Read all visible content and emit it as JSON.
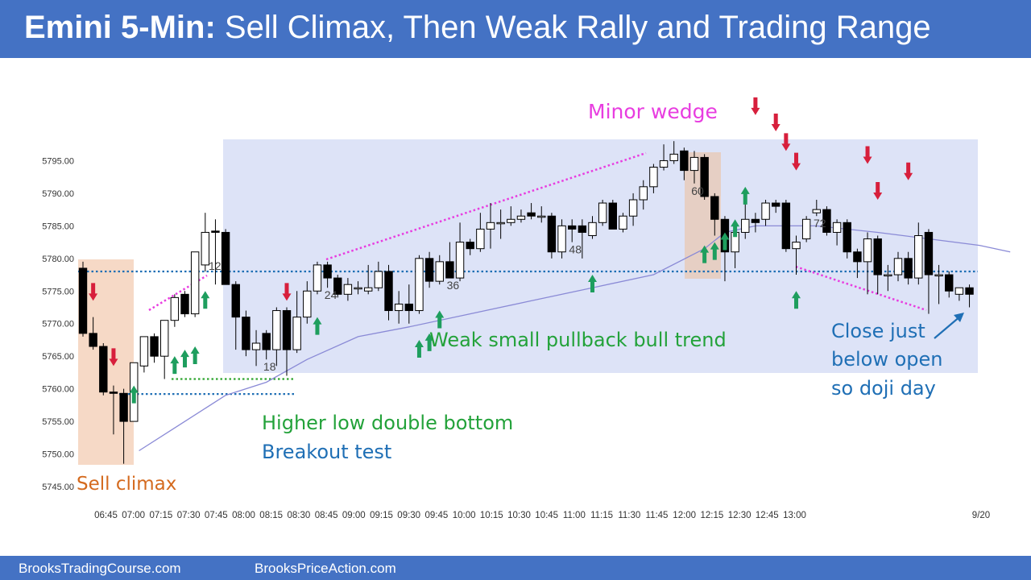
{
  "header": {
    "title_bold": "Emini 5-Min:",
    "title_rest": "Sell Climax, Then Weak Rally and Trading Range"
  },
  "footer": {
    "left": "BrooksTradingCourse.com",
    "right": "BrooksPriceAction.com"
  },
  "annotations": {
    "minor_wedge": "Minor wedge",
    "sell_climax": "Sell climax",
    "weak_trend": "Weak small pullback bull trend",
    "hl_line1": "Higher low double bottom",
    "hl_line2": "Breakout test",
    "close_line1": "Close just",
    "close_line2": "below open",
    "close_line3": "so doji day"
  },
  "colors": {
    "bull": "#ffffff",
    "bear": "#000000",
    "ema": "#8a8ad6",
    "range_box": "#dde3f7",
    "climax_box": "#f6d9c6",
    "up_arrow": "#1e9e5e",
    "down_arrow": "#d71f3c",
    "wedge": "#e83de0",
    "dotted_blue": "#1f6fb5",
    "dotted_green": "#2fa52f",
    "header_bg": "#4472c4"
  },
  "chart_data": {
    "type": "candlestick",
    "ylim": [
      5745,
      5800
    ],
    "yticks": [
      "5745.00",
      "5750.00",
      "5755.00",
      "5760.00",
      "5765.00",
      "5770.00",
      "5775.00",
      "5780.00",
      "5785.00",
      "5790.00",
      "5795.00"
    ],
    "xticks": [
      "06:45",
      "07:00",
      "07:15",
      "07:30",
      "07:45",
      "08:00",
      "08:15",
      "08:30",
      "08:45",
      "09:00",
      "09:15",
      "09:30",
      "09:45",
      "10:00",
      "10:15",
      "10:30",
      "10:45",
      "11:00",
      "11:15",
      "11:30",
      "11:45",
      "12:00",
      "12:15",
      "12:30",
      "12:45",
      "13:00",
      "9/20"
    ],
    "bar_labels": [
      {
        "bar": 12,
        "text": "12"
      },
      {
        "bar": 18,
        "text": "18"
      },
      {
        "bar": 24,
        "text": "24"
      },
      {
        "bar": 36,
        "text": "36"
      },
      {
        "bar": 48,
        "text": "48"
      },
      {
        "bar": 60,
        "text": "60"
      },
      {
        "bar": 72,
        "text": "72"
      }
    ],
    "levels": {
      "open_line": 5778.0,
      "breakout_test": 5759.2,
      "higher_low": 5761.5
    },
    "candles": [
      {
        "o": 5778.5,
        "h": 5779.5,
        "l": 5768,
        "c": 5768.5
      },
      {
        "o": 5768.5,
        "h": 5771,
        "l": 5766,
        "c": 5766.5
      },
      {
        "o": 5766.5,
        "h": 5767,
        "l": 5759,
        "c": 5759.5
      },
      {
        "o": 5759.5,
        "h": 5760.5,
        "l": 5753,
        "c": 5759.3
      },
      {
        "o": 5759.3,
        "h": 5760,
        "l": 5748.5,
        "c": 5755
      },
      {
        "o": 5755,
        "h": 5764,
        "l": 5755,
        "c": 5764
      },
      {
        "o": 5763.5,
        "h": 5768,
        "l": 5762.5,
        "c": 5768
      },
      {
        "o": 5768,
        "h": 5768.5,
        "l": 5764,
        "c": 5765
      },
      {
        "o": 5765,
        "h": 5770.5,
        "l": 5761.5,
        "c": 5770.5
      },
      {
        "o": 5770.5,
        "h": 5774.5,
        "l": 5769.5,
        "c": 5774
      },
      {
        "o": 5774.5,
        "h": 5775,
        "l": 5771,
        "c": 5771.5
      },
      {
        "o": 5771.5,
        "h": 5781,
        "l": 5771,
        "c": 5781
      },
      {
        "o": 5779,
        "h": 5787,
        "l": 5778,
        "c": 5784
      },
      {
        "o": 5784.2,
        "h": 5786,
        "l": 5776,
        "c": 5784
      },
      {
        "o": 5784,
        "h": 5784.5,
        "l": 5776,
        "c": 5776
      },
      {
        "o": 5776,
        "h": 5776.5,
        "l": 5766,
        "c": 5771
      },
      {
        "o": 5771,
        "h": 5772,
        "l": 5765,
        "c": 5766
      },
      {
        "o": 5766,
        "h": 5769,
        "l": 5763.5,
        "c": 5767
      },
      {
        "o": 5768.5,
        "h": 5769,
        "l": 5764.5,
        "c": 5766
      },
      {
        "o": 5766,
        "h": 5772.5,
        "l": 5763.5,
        "c": 5772
      },
      {
        "o": 5772,
        "h": 5772.5,
        "l": 5762,
        "c": 5766
      },
      {
        "o": 5766,
        "h": 5775,
        "l": 5765.5,
        "c": 5771
      },
      {
        "o": 5771,
        "h": 5776.5,
        "l": 5770,
        "c": 5775
      },
      {
        "o": 5775,
        "h": 5779.5,
        "l": 5774.5,
        "c": 5779
      },
      {
        "o": 5779,
        "h": 5779.5,
        "l": 5775.5,
        "c": 5777
      },
      {
        "o": 5777,
        "h": 5777.5,
        "l": 5774,
        "c": 5774.5
      },
      {
        "o": 5774.5,
        "h": 5777,
        "l": 5773.5,
        "c": 5776
      },
      {
        "o": 5775.5,
        "h": 5776.5,
        "l": 5774.5,
        "c": 5775.5
      },
      {
        "o": 5775,
        "h": 5779,
        "l": 5774.5,
        "c": 5775.5
      },
      {
        "o": 5775.5,
        "h": 5779.5,
        "l": 5775,
        "c": 5778
      },
      {
        "o": 5778,
        "h": 5779,
        "l": 5770.5,
        "c": 5772
      },
      {
        "o": 5772,
        "h": 5775,
        "l": 5770,
        "c": 5773
      },
      {
        "o": 5773,
        "h": 5776,
        "l": 5770,
        "c": 5772
      },
      {
        "o": 5772,
        "h": 5780.5,
        "l": 5771.5,
        "c": 5780
      },
      {
        "o": 5780,
        "h": 5781,
        "l": 5775.5,
        "c": 5776.5
      },
      {
        "o": 5776.5,
        "h": 5780.5,
        "l": 5776,
        "c": 5779.5
      },
      {
        "o": 5779.5,
        "h": 5782.5,
        "l": 5777,
        "c": 5777
      },
      {
        "o": 5777,
        "h": 5785.5,
        "l": 5776.5,
        "c": 5782.5
      },
      {
        "o": 5782.5,
        "h": 5783,
        "l": 5780.5,
        "c": 5781.5
      },
      {
        "o": 5781.5,
        "h": 5787,
        "l": 5781,
        "c": 5784.5
      },
      {
        "o": 5784.5,
        "h": 5788.5,
        "l": 5781.5,
        "c": 5785.5
      },
      {
        "o": 5785.5,
        "h": 5787.5,
        "l": 5783,
        "c": 5785.5
      },
      {
        "o": 5785.5,
        "h": 5788,
        "l": 5785,
        "c": 5786
      },
      {
        "o": 5786,
        "h": 5787.5,
        "l": 5785.5,
        "c": 5786.5
      },
      {
        "o": 5787,
        "h": 5788.5,
        "l": 5786,
        "c": 5786.5
      },
      {
        "o": 5786.5,
        "h": 5788,
        "l": 5785.5,
        "c": 5786.5
      },
      {
        "o": 5786.5,
        "h": 5787,
        "l": 5780,
        "c": 5781
      },
      {
        "o": 5781,
        "h": 5786,
        "l": 5780,
        "c": 5785
      },
      {
        "o": 5785,
        "h": 5786,
        "l": 5782.5,
        "c": 5784.5
      },
      {
        "o": 5785,
        "h": 5786,
        "l": 5780,
        "c": 5784
      },
      {
        "o": 5783.5,
        "h": 5786.5,
        "l": 5783,
        "c": 5785.5
      },
      {
        "o": 5785.5,
        "h": 5789,
        "l": 5785,
        "c": 5788.5
      },
      {
        "o": 5788.5,
        "h": 5789,
        "l": 5784.5,
        "c": 5784.5
      },
      {
        "o": 5784.5,
        "h": 5787,
        "l": 5784,
        "c": 5786.5
      },
      {
        "o": 5786.5,
        "h": 5790,
        "l": 5785,
        "c": 5789
      },
      {
        "o": 5789,
        "h": 5792,
        "l": 5787.5,
        "c": 5791
      },
      {
        "o": 5791,
        "h": 5794.5,
        "l": 5790,
        "c": 5794
      },
      {
        "o": 5794,
        "h": 5797.5,
        "l": 5793.5,
        "c": 5795
      },
      {
        "o": 5795,
        "h": 5798,
        "l": 5794.5,
        "c": 5796
      },
      {
        "o": 5796.5,
        "h": 5797,
        "l": 5792,
        "c": 5793.5
      },
      {
        "o": 5793.5,
        "h": 5796.5,
        "l": 5791.5,
        "c": 5795.5
      },
      {
        "o": 5795.5,
        "h": 5796,
        "l": 5789,
        "c": 5789.5
      },
      {
        "o": 5789.5,
        "h": 5790,
        "l": 5783.5,
        "c": 5786
      },
      {
        "o": 5786,
        "h": 5786.5,
        "l": 5776.5,
        "c": 5781
      },
      {
        "o": 5781,
        "h": 5784.5,
        "l": 5778.5,
        "c": 5784
      },
      {
        "o": 5784,
        "h": 5788.5,
        "l": 5783,
        "c": 5786
      },
      {
        "o": 5786,
        "h": 5787,
        "l": 5784,
        "c": 5785.5
      },
      {
        "o": 5786,
        "h": 5789,
        "l": 5785,
        "c": 5788.5
      },
      {
        "o": 5788.5,
        "h": 5789,
        "l": 5787,
        "c": 5788
      },
      {
        "o": 5788.5,
        "h": 5789,
        "l": 5781,
        "c": 5781.5
      },
      {
        "o": 5781.5,
        "h": 5783.5,
        "l": 5777.5,
        "c": 5782.5
      },
      {
        "o": 5783,
        "h": 5786.5,
        "l": 5782.5,
        "c": 5786
      },
      {
        "o": 5787,
        "h": 5789,
        "l": 5786.5,
        "c": 5787.5
      },
      {
        "o": 5787.5,
        "h": 5788,
        "l": 5783.5,
        "c": 5784
      },
      {
        "o": 5784,
        "h": 5786,
        "l": 5782,
        "c": 5785.5
      },
      {
        "o": 5785.5,
        "h": 5786,
        "l": 5780,
        "c": 5781
      },
      {
        "o": 5781,
        "h": 5781.5,
        "l": 5777,
        "c": 5779.5
      },
      {
        "o": 5779.5,
        "h": 5784,
        "l": 5774.5,
        "c": 5783
      },
      {
        "o": 5783,
        "h": 5783.5,
        "l": 5774.5,
        "c": 5777.5
      },
      {
        "o": 5777.5,
        "h": 5779,
        "l": 5775,
        "c": 5777.5
      },
      {
        "o": 5777.5,
        "h": 5781,
        "l": 5776.5,
        "c": 5780
      },
      {
        "o": 5780,
        "h": 5781,
        "l": 5776,
        "c": 5777
      },
      {
        "o": 5777,
        "h": 5785.5,
        "l": 5776,
        "c": 5783.5
      },
      {
        "o": 5784,
        "h": 5784.5,
        "l": 5771.5,
        "c": 5777.5
      },
      {
        "o": 5777.5,
        "h": 5779,
        "l": 5773,
        "c": 5777.5
      },
      {
        "o": 5777.5,
        "h": 5778,
        "l": 5774,
        "c": 5775
      },
      {
        "o": 5774.5,
        "h": 5775.5,
        "l": 5773.5,
        "c": 5775.5
      },
      {
        "o": 5775.5,
        "h": 5776,
        "l": 5772.5,
        "c": 5774.5
      }
    ],
    "ema": [
      [
        5.5,
        5750.5
      ],
      [
        9,
        5754
      ],
      [
        14,
        5759
      ],
      [
        18,
        5761
      ],
      [
        22,
        5764.5
      ],
      [
        27,
        5768
      ],
      [
        32,
        5769.5
      ],
      [
        38,
        5771.5
      ],
      [
        44,
        5773.5
      ],
      [
        50,
        5775.5
      ],
      [
        56,
        5777.5
      ],
      [
        61,
        5781.5
      ],
      [
        63,
        5784
      ],
      [
        66,
        5785
      ],
      [
        72,
        5785
      ],
      [
        78,
        5784
      ],
      [
        83,
        5783
      ],
      [
        88,
        5782
      ],
      [
        91,
        5781
      ]
    ],
    "up_arrows": [
      {
        "bar": 5,
        "price": 5760.5
      },
      {
        "bar": 9,
        "price": 5765
      },
      {
        "bar": 10,
        "price": 5766
      },
      {
        "bar": 11,
        "price": 5766.5
      },
      {
        "bar": 12,
        "price": 5775
      },
      {
        "bar": 23,
        "price": 5771
      },
      {
        "bar": 33,
        "price": 5767.5
      },
      {
        "bar": 34,
        "price": 5768.5
      },
      {
        "bar": 35,
        "price": 5772
      },
      {
        "bar": 50,
        "price": 5777.5
      },
      {
        "bar": 61,
        "price": 5782
      },
      {
        "bar": 62,
        "price": 5782.5
      },
      {
        "bar": 63,
        "price": 5784
      },
      {
        "bar": 64,
        "price": 5786
      },
      {
        "bar": 65,
        "price": 5791
      },
      {
        "bar": 70,
        "price": 5775
      }
    ],
    "down_arrows": [
      {
        "bar": 1,
        "price": 5773.5
      },
      {
        "bar": 3,
        "price": 5763.5
      },
      {
        "bar": 20,
        "price": 5773.5
      },
      {
        "bar": 66,
        "price": 5802
      },
      {
        "bar": 68,
        "price": 5799.5
      },
      {
        "bar": 69,
        "price": 5796.5
      },
      {
        "bar": 70,
        "price": 5793.5
      },
      {
        "bar": 77,
        "price": 5794.5
      },
      {
        "bar": 78,
        "price": 5789
      },
      {
        "bar": 81,
        "price": 5792
      }
    ]
  }
}
